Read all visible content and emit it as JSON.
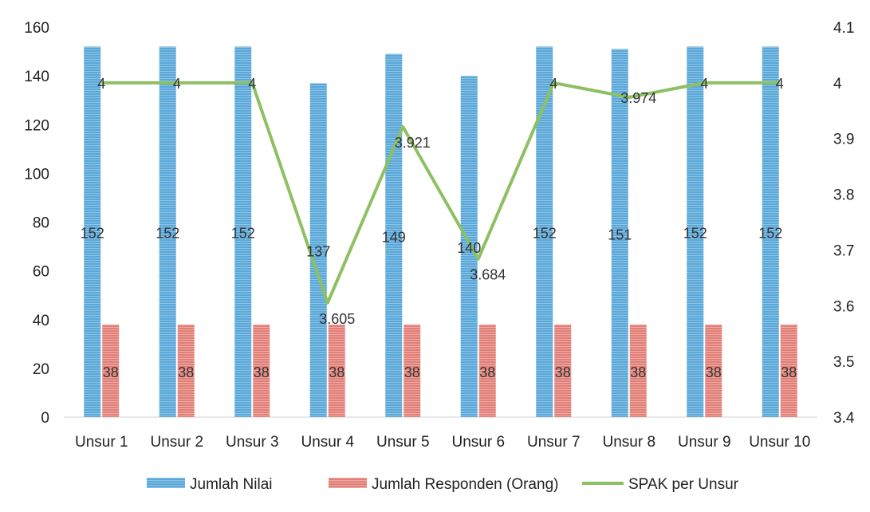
{
  "chart_data": {
    "type": "bar",
    "categories": [
      "Unsur 1",
      "Unsur 2",
      "Unsur 3",
      "Unsur 4",
      "Unsur 5",
      "Unsur 6",
      "Unsur 7",
      "Unsur 8",
      "Unsur 9",
      "Unsur 10"
    ],
    "series": [
      {
        "name": "Jumlah Nilai",
        "type": "bar",
        "axis": "left",
        "color": "#5aa7d8",
        "values": [
          152,
          152,
          152,
          137,
          149,
          140,
          152,
          151,
          152,
          152
        ]
      },
      {
        "name": "Jumlah Responden (Orang)",
        "type": "bar",
        "axis": "left",
        "color": "#e07f77",
        "values": [
          38,
          38,
          38,
          38,
          38,
          38,
          38,
          38,
          38,
          38
        ]
      },
      {
        "name": "SPAK per Unsur",
        "type": "line",
        "axis": "right",
        "color": "#8dc063",
        "values": [
          4,
          4,
          4,
          3.605,
          3.921,
          3.684,
          4,
          3.974,
          4,
          4
        ]
      }
    ],
    "ylim": [
      0,
      160
    ],
    "yticks": [
      0,
      20,
      40,
      60,
      80,
      100,
      120,
      140,
      160
    ],
    "y2lim": [
      3.4,
      4.1
    ],
    "y2ticks": [
      "3.4",
      "3.5",
      "3.6",
      "3.7",
      "3.8",
      "3.9",
      "4",
      "4.1"
    ],
    "legend_position": "bottom",
    "grid": false
  }
}
